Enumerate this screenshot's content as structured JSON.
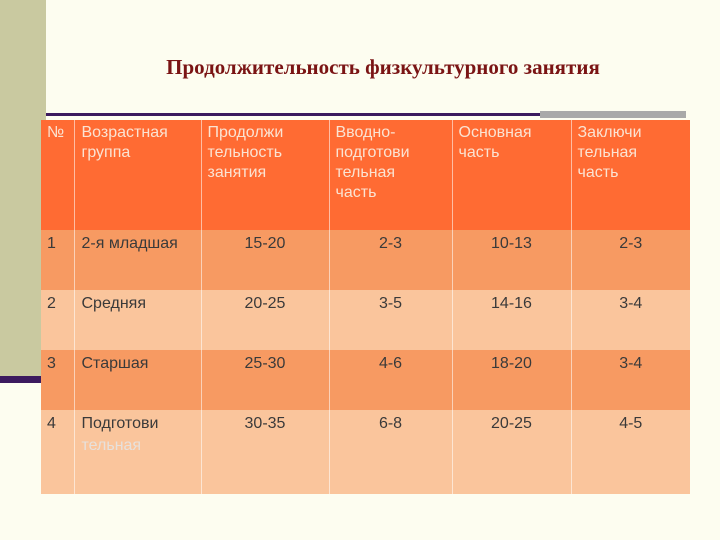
{
  "title": "Продолжительность физкультурного занятия",
  "headers": {
    "num": "№",
    "group": [
      "Возрастная",
      "группа"
    ],
    "duration": [
      "Продолжи",
      "тельность",
      "занятия"
    ],
    "intro": [
      "Вводно-",
      "подготови",
      "тельная",
      "часть"
    ],
    "main": [
      "Основная",
      "часть"
    ],
    "final": [
      "Заключи",
      "тельная",
      "часть"
    ]
  },
  "rows": [
    {
      "num": "1",
      "group": [
        "2-я младшая"
      ],
      "duration": "15-20",
      "intro": "2-3",
      "main": "10-13",
      "final": "2-3"
    },
    {
      "num": "2",
      "group": [
        "Средняя"
      ],
      "duration": "20-25",
      "intro": "3-5",
      "main": "14-16",
      "final": "3-4"
    },
    {
      "num": "3",
      "group": [
        "Старшая"
      ],
      "duration": "25-30",
      "intro": "4-6",
      "main": "18-20",
      "final": "3-4"
    },
    {
      "num": "4",
      "group": [
        "Подготови",
        "тельная"
      ],
      "duration": "30-35",
      "intro": "6-8",
      "main": "20-25",
      "final": "4-5"
    }
  ]
}
